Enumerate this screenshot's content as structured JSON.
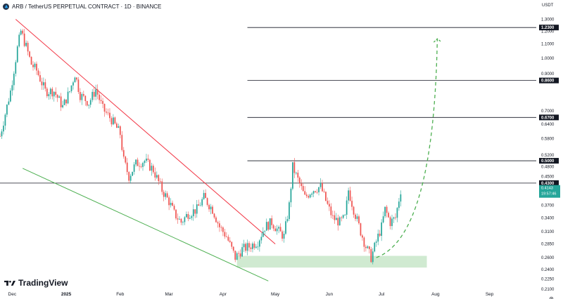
{
  "header": {
    "symbol_title": "ARB / TetherUS PERPETUAL CONTRACT · 1D · BINANCE",
    "currency": "USDT",
    "brand_name": "TradingView"
  },
  "colors": {
    "up": "#26a69a",
    "down": "#ef5350",
    "resistance_line": "#f23645",
    "support_line": "#4caf50",
    "zone_fill": "#c8e6c9",
    "projection": "#4caf50",
    "level_line": "#131722",
    "label_bg": "#131722",
    "current_price_bg": "#26a69a"
  },
  "icons": {
    "symbol": "arbitrum-logo-icon",
    "brand": "tradingview-logo-icon",
    "settings": "gear-icon"
  },
  "chart_data": {
    "type": "candlestick",
    "title": "ARB / TetherUS PERPETUAL CONTRACT · 1D · BINANCE",
    "x_ticks": [
      "Dec",
      "2025",
      "Feb",
      "Mar",
      "Apr",
      "May",
      "Jun",
      "Jul",
      "Aug",
      "Sep"
    ],
    "x_range": [
      "2024-11-24",
      "2025-09-27"
    ],
    "y_scale": "log",
    "y_range": [
      0.212,
      1.36
    ],
    "y_ticks": [
      "1.3000",
      "1.2000",
      "1.1000",
      "1.0000",
      "0.9000",
      "0.8600",
      "0.7000",
      "0.6700",
      "0.6400",
      "0.5800",
      "0.5200",
      "0.5000",
      "0.4800",
      "0.4500",
      "0.4300",
      "0.3700",
      "0.3400",
      "0.3100",
      "0.2850",
      "0.2600",
      "0.2400",
      "0.2250",
      "0.2100"
    ],
    "levels": [
      {
        "value": 1.23,
        "label": "1.2300"
      },
      {
        "value": 0.86,
        "label": "0.8600"
      },
      {
        "value": 0.67,
        "label": "0.6700"
      },
      {
        "value": 0.5,
        "label": "0.5000"
      },
      {
        "value": 0.43,
        "label": "0.4300"
      }
    ],
    "current_price": {
      "value": 0.4143,
      "label": "0.4143",
      "countdown": "19:57:46"
    },
    "trendlines": [
      {
        "name": "resistance",
        "from": {
          "date": "2024-12-03",
          "price": 1.3
        },
        "to": {
          "date": "2025-05-01",
          "price": 0.285
        }
      },
      {
        "name": "support",
        "from": {
          "date": "2024-12-07",
          "price": 0.475
        },
        "to": {
          "date": "2025-04-27",
          "price": 0.222
        }
      }
    ],
    "zone": {
      "from": "2025-04-09",
      "to": "2025-07-27",
      "low": 0.243,
      "high": 0.263
    },
    "projection": {
      "from": {
        "date": "2025-06-28",
        "price": 0.26
      },
      "to": {
        "date": "2025-08-02",
        "price": 1.14
      }
    },
    "price_path": [
      [
        "2024-11-24",
        0.59
      ],
      [
        "2024-11-30",
        0.8
      ],
      [
        "2024-12-04",
        1.07
      ],
      [
        "2024-12-06",
        1.2
      ],
      [
        "2024-12-09",
        1.08
      ],
      [
        "2024-12-12",
        0.96
      ],
      [
        "2024-12-15",
        0.92
      ],
      [
        "2024-12-20",
        0.8
      ],
      [
        "2024-12-25",
        0.8
      ],
      [
        "2024-12-30",
        0.72
      ],
      [
        "2025-01-03",
        0.8
      ],
      [
        "2025-01-06",
        0.9
      ],
      [
        "2025-01-09",
        0.78
      ],
      [
        "2025-01-14",
        0.74
      ],
      [
        "2025-01-18",
        0.81
      ],
      [
        "2025-01-22",
        0.71
      ],
      [
        "2025-01-27",
        0.66
      ],
      [
        "2025-02-01",
        0.6
      ],
      [
        "2025-02-03",
        0.5
      ],
      [
        "2025-02-06",
        0.45
      ],
      [
        "2025-02-10",
        0.49
      ],
      [
        "2025-02-15",
        0.5
      ],
      [
        "2025-02-20",
        0.47
      ],
      [
        "2025-02-25",
        0.41
      ],
      [
        "2025-03-01",
        0.38
      ],
      [
        "2025-03-04",
        0.35
      ],
      [
        "2025-03-08",
        0.33
      ],
      [
        "2025-03-12",
        0.35
      ],
      [
        "2025-03-17",
        0.36
      ],
      [
        "2025-03-21",
        0.39
      ],
      [
        "2025-03-26",
        0.36
      ],
      [
        "2025-03-30",
        0.32
      ],
      [
        "2025-04-03",
        0.3
      ],
      [
        "2025-04-08",
        0.26
      ],
      [
        "2025-04-12",
        0.275
      ],
      [
        "2025-04-16",
        0.28
      ],
      [
        "2025-04-21",
        0.29
      ],
      [
        "2025-04-25",
        0.32
      ],
      [
        "2025-04-29",
        0.33
      ],
      [
        "2025-05-03",
        0.31
      ],
      [
        "2025-05-06",
        0.3
      ],
      [
        "2025-05-09",
        0.37
      ],
      [
        "2025-05-11",
        0.48
      ],
      [
        "2025-05-14",
        0.44
      ],
      [
        "2025-05-18",
        0.39
      ],
      [
        "2025-05-22",
        0.41
      ],
      [
        "2025-05-27",
        0.42
      ],
      [
        "2025-05-31",
        0.37
      ],
      [
        "2025-06-03",
        0.34
      ],
      [
        "2025-06-07",
        0.33
      ],
      [
        "2025-06-10",
        0.34
      ],
      [
        "2025-06-12",
        0.41
      ],
      [
        "2025-06-15",
        0.36
      ],
      [
        "2025-06-19",
        0.31
      ],
      [
        "2025-06-22",
        0.28
      ],
      [
        "2025-06-25",
        0.26
      ],
      [
        "2025-06-29",
        0.3
      ],
      [
        "2025-07-01",
        0.32
      ],
      [
        "2025-07-03",
        0.36
      ],
      [
        "2025-07-06",
        0.33
      ],
      [
        "2025-07-09",
        0.34
      ],
      [
        "2025-07-12",
        0.41
      ]
    ]
  }
}
